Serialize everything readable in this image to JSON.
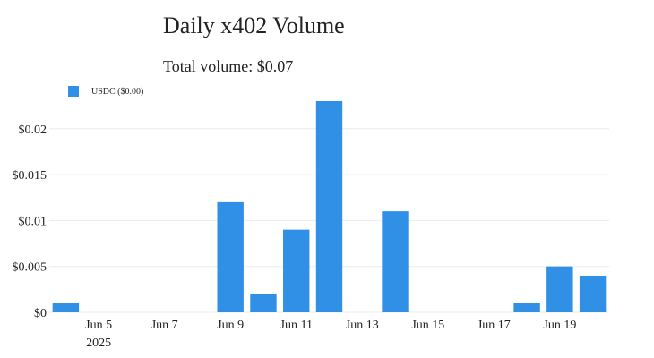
{
  "header": {
    "title": "Daily x402 Volume",
    "subtitle": "Total volume: $0.07"
  },
  "legend": {
    "label": "USDC ($0.00)",
    "color": "#2f90e5"
  },
  "chart_data": {
    "type": "bar",
    "title": "Daily x402 Volume",
    "subtitle": "Total volume: $0.07",
    "categories": [
      "2025-06-04",
      "2025-06-05",
      "2025-06-06",
      "2025-06-07",
      "2025-06-08",
      "2025-06-09",
      "2025-06-10",
      "2025-06-11",
      "2025-06-12",
      "2025-06-13",
      "2025-06-14",
      "2025-06-15",
      "2025-06-16",
      "2025-06-17",
      "2025-06-18",
      "2025-06-19",
      "2025-06-20"
    ],
    "series": [
      {
        "name": "USDC ($0.00)",
        "color": "#2f90e5",
        "values": [
          0.001,
          0,
          0,
          0,
          0,
          0.012,
          0.002,
          0.009,
          0.023,
          0,
          0.011,
          0,
          0,
          0,
          0.001,
          0.005,
          0.004
        ]
      }
    ],
    "ylim": [
      0,
      0.023
    ],
    "yticks": [
      0,
      0.005,
      0.01,
      0.015,
      0.02
    ],
    "ytick_labels": [
      "$0",
      "$0.005",
      "$0.01",
      "$0.015",
      "$0.02"
    ],
    "xticks": [
      {
        "date": "2025-06-05",
        "label": "Jun 5",
        "sublabel": "2025"
      },
      {
        "date": "2025-06-07",
        "label": "Jun 7"
      },
      {
        "date": "2025-06-09",
        "label": "Jun 9"
      },
      {
        "date": "2025-06-11",
        "label": "Jun 11"
      },
      {
        "date": "2025-06-13",
        "label": "Jun 13"
      },
      {
        "date": "2025-06-15",
        "label": "Jun 15"
      },
      {
        "date": "2025-06-17",
        "label": "Jun 17"
      },
      {
        "date": "2025-06-19",
        "label": "Jun 19"
      }
    ],
    "grid": true,
    "legend_position": "top-left"
  }
}
